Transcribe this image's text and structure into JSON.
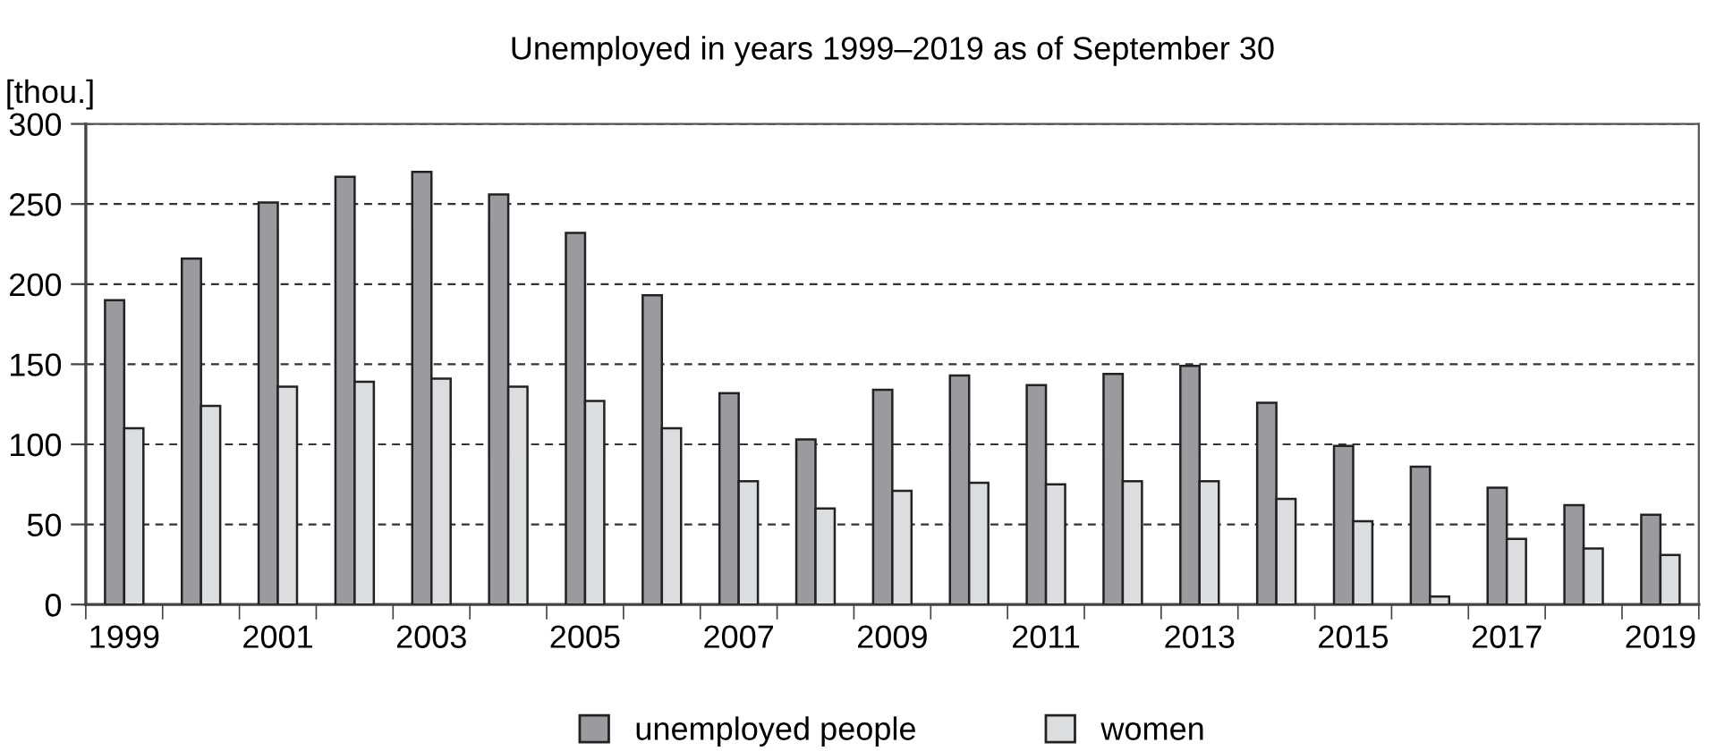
{
  "chart_data": {
    "type": "bar",
    "title": "Unemployed in years 1999–2019 as of September 30",
    "ylabel": "[thou.]",
    "categories": [
      "1999",
      null,
      "2001",
      null,
      "2003",
      null,
      "2005",
      null,
      "2007",
      null,
      "2009",
      null,
      "2011",
      null,
      "2013",
      null,
      "2015",
      null,
      "2017",
      null,
      "2019"
    ],
    "series": [
      {
        "name": "unemployed people",
        "color": "#9b9b9f",
        "values": [
          190,
          216,
          251,
          267,
          270,
          256,
          232,
          193,
          132,
          103,
          134,
          143,
          137,
          144,
          149,
          126,
          99,
          86,
          73,
          62,
          56
        ]
      },
      {
        "name": "women",
        "color": "#dcdddf",
        "values": [
          110,
          124,
          136,
          139,
          141,
          136,
          127,
          110,
          77,
          60,
          71,
          76,
          75,
          77,
          77,
          66,
          52,
          5,
          41,
          35,
          31
        ]
      }
    ],
    "ylim": [
      0,
      300
    ],
    "yticks": [
      0,
      50,
      100,
      150,
      200,
      250,
      300
    ],
    "grid": "y",
    "legend": "bottom"
  }
}
